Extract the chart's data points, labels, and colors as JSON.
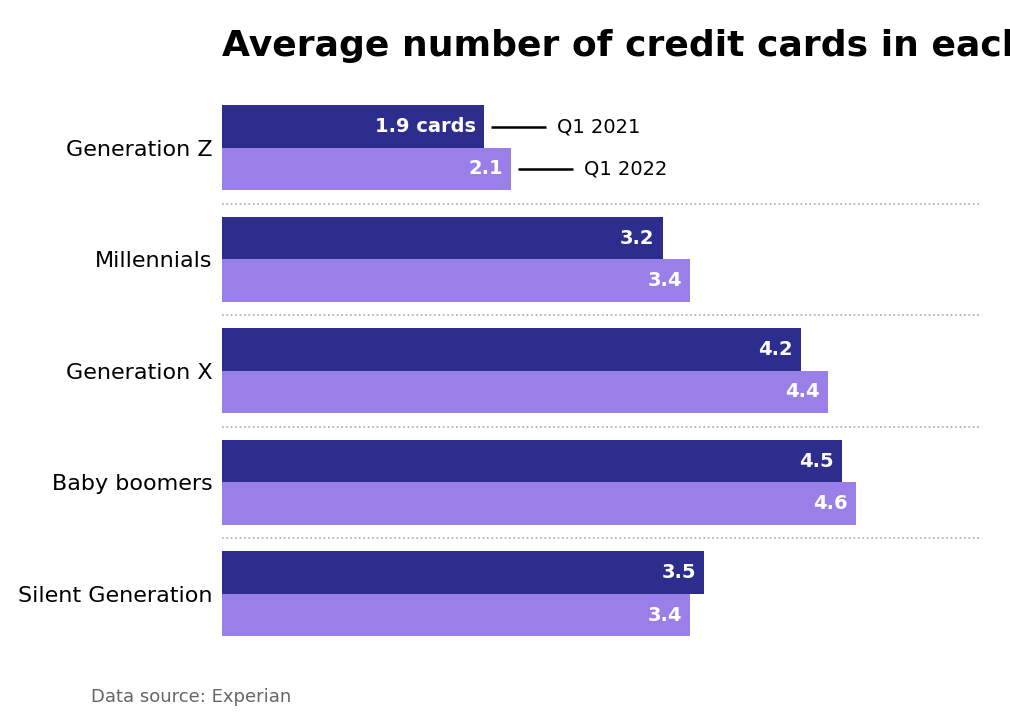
{
  "title": "Average number of credit cards in each generation",
  "categories": [
    "Generation Z",
    "Millennials",
    "Generation X",
    "Baby boomers",
    "Silent Generation"
  ],
  "q1_2021": [
    1.9,
    3.2,
    4.2,
    4.5,
    3.5
  ],
  "q1_2022": [
    2.1,
    3.4,
    4.4,
    4.6,
    3.4
  ],
  "q1_2021_labels": [
    "1.9 cards",
    "3.2",
    "4.2",
    "4.5",
    "3.5"
  ],
  "q1_2022_labels": [
    "2.1",
    "3.4",
    "4.4",
    "4.6",
    "3.4"
  ],
  "color_2021": "#2d2d8e",
  "color_2022": "#9b7fe8",
  "bar_height": 0.38,
  "xlim": [
    0,
    5.5
  ],
  "legend_label_2021": "Q1 2021",
  "legend_label_2022": "Q1 2022",
  "footnote": "Data source: Experian",
  "background_color": "#ffffff",
  "title_fontsize": 26,
  "label_fontsize": 14,
  "category_fontsize": 16,
  "footnote_fontsize": 13
}
